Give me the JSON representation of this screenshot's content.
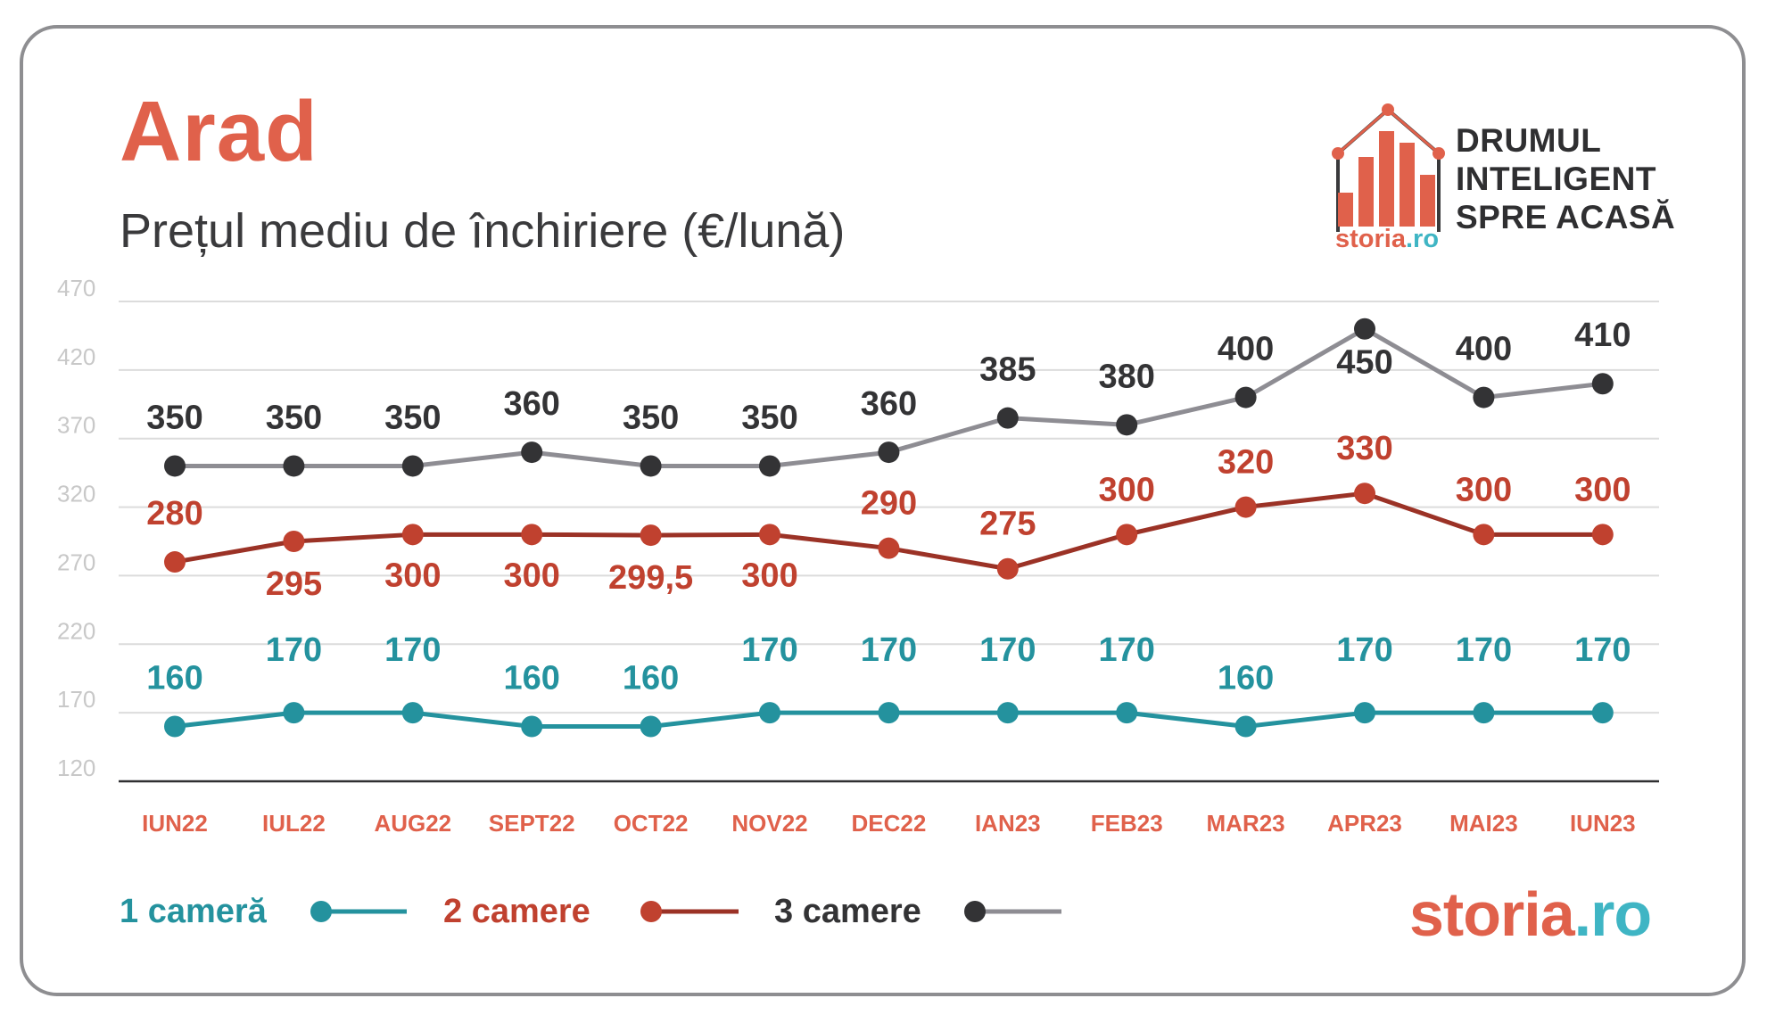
{
  "header": {
    "title": "Arad",
    "subtitle": "Prețul mediu de închiriere (€/lună)"
  },
  "brand": {
    "tagline": [
      "DRUMUL",
      "INTELIGENT",
      "SPRE ACASĂ"
    ],
    "logo_main": "storia",
    "logo_suffix": ".ro"
  },
  "colors": {
    "accent": "#e0614b",
    "teal": "#24929e",
    "red": "#9b3226",
    "gray_line": "#8e8d93",
    "dark": "#333335"
  },
  "chart_data": {
    "type": "line",
    "title": "Prețul mediu de închiriere (€/lună)",
    "xlabel": "",
    "ylabel": "",
    "categories": [
      "IUN22",
      "IUL22",
      "AUG22",
      "SEPT22",
      "OCT22",
      "NOV22",
      "DEC22",
      "IAN23",
      "FEB23",
      "MAR23",
      "APR23",
      "MAI23",
      "IUN23"
    ],
    "yticks": [
      470,
      420,
      370,
      320,
      270,
      220,
      170,
      120
    ],
    "ylim": [
      120,
      470
    ],
    "grid": true,
    "legend_position": "bottom-left",
    "series": [
      {
        "name": "1 cameră",
        "values": [
          160,
          170,
          170,
          160,
          160,
          170,
          170,
          170,
          170,
          160,
          170,
          170,
          170
        ],
        "labels": [
          "160",
          "170",
          "170",
          "160",
          "160",
          "170",
          "170",
          "170",
          "170",
          "160",
          "170",
          "170",
          "170"
        ]
      },
      {
        "name": "2 camere",
        "values": [
          280,
          295,
          300,
          300,
          299.5,
          300,
          290,
          275,
          300,
          320,
          330,
          300,
          300
        ],
        "labels": [
          "280",
          "295",
          "300",
          "300",
          "299,5",
          "300",
          "290",
          "275",
          "300",
          "320",
          "330",
          "300",
          "300"
        ]
      },
      {
        "name": "3 camere",
        "values": [
          350,
          350,
          350,
          360,
          350,
          350,
          360,
          385,
          380,
          400,
          450,
          400,
          410
        ],
        "labels": [
          "350",
          "350",
          "350",
          "360",
          "350",
          "350",
          "360",
          "385",
          "380",
          "400",
          "450",
          "400",
          "410"
        ]
      }
    ]
  }
}
